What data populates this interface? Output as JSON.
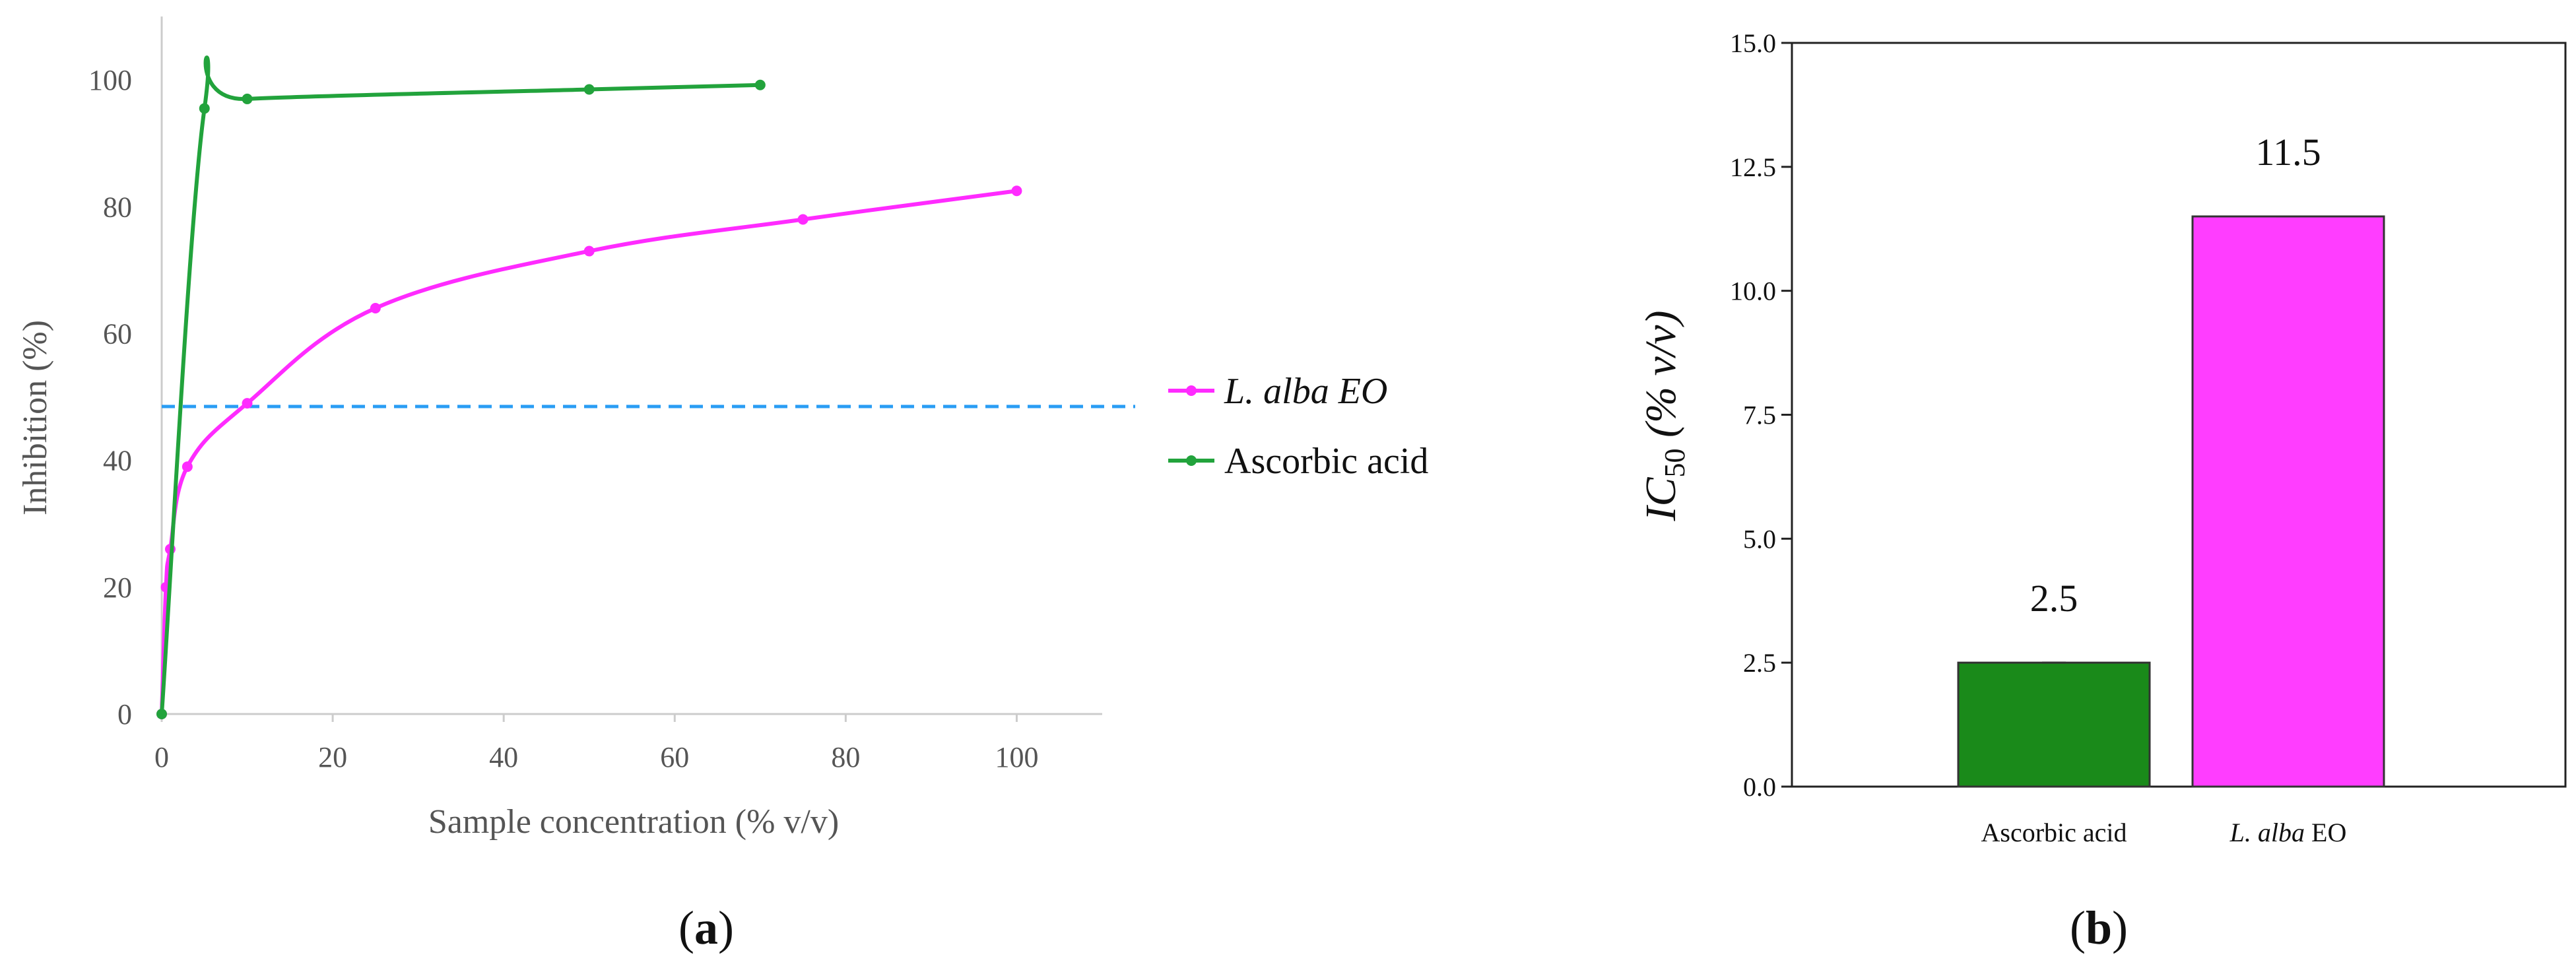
{
  "panels": {
    "a": {
      "label": "a"
    },
    "b": {
      "label": "b"
    }
  },
  "chart_data": [
    {
      "id": "a",
      "type": "line",
      "xlabel": "Sample concentration (% v/v)",
      "ylabel": "Inhibition (%)",
      "xlim": [
        0,
        110
      ],
      "ylim": [
        0,
        110
      ],
      "xticks": [
        0,
        20,
        40,
        60,
        80,
        100
      ],
      "yticks": [
        0,
        20,
        40,
        60,
        80,
        100
      ],
      "legend_position": "right",
      "reference_line": {
        "y": 48.5,
        "color": "#2a9df4",
        "style": "dashed"
      },
      "series": [
        {
          "name": "L. alba EO",
          "color": "#ff2bff",
          "x": [
            0,
            0.5,
            1,
            3,
            10,
            25,
            50,
            75,
            100
          ],
          "y": [
            0,
            20,
            26,
            39,
            49,
            64,
            73,
            78,
            82.5
          ]
        },
        {
          "name": "Ascorbic acid",
          "color": "#22a33c",
          "x": [
            0,
            5,
            10,
            50,
            70
          ],
          "y": [
            0,
            95.5,
            97,
            98.5,
            99.2
          ]
        }
      ]
    },
    {
      "id": "b",
      "type": "bar",
      "ylabel_main": "IC",
      "ylabel_sub": "50",
      "ylabel_rest": " (% v/v)",
      "ylim": [
        0,
        15
      ],
      "yticks": [
        "0.0",
        "2.5",
        "5.0",
        "7.5",
        "10.0",
        "12.5",
        "15.0"
      ],
      "categories": [
        {
          "italic": "",
          "plain": "Ascorbic acid"
        },
        {
          "italic": "L. alba",
          "plain": " EO"
        }
      ],
      "values": [
        2.5,
        11.5
      ],
      "value_labels": [
        "2.5",
        "11.5"
      ],
      "colors": [
        "#1a8a1a",
        "#ff3dff"
      ]
    }
  ]
}
